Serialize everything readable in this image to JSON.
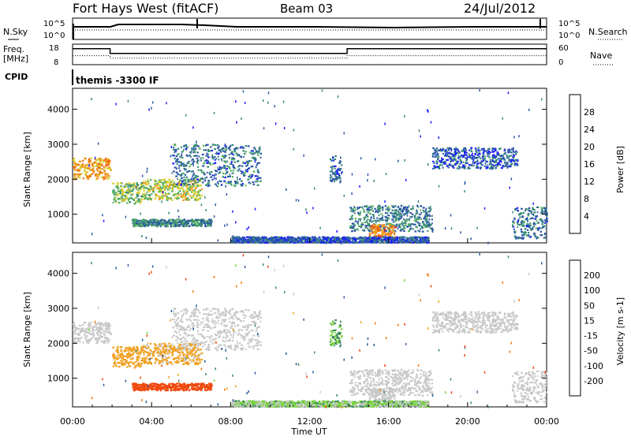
{
  "header": {
    "station": "Fort Hays West (fitACF)",
    "beam": "Beam 03",
    "date": "24/Jul/2012"
  },
  "top_panels": {
    "nsky_label": "N.Sky",
    "nsky_ticks": [
      "10^5",
      "10^0"
    ],
    "nsearch_label": "N.Search",
    "nsearch_ticks": [
      "10^5",
      "10^0"
    ],
    "freq_label_1": "Freq.",
    "freq_label_2": "[MHz]",
    "freq_ticks": [
      "18",
      "8"
    ],
    "nave_label": "Nave",
    "nave_ticks": [
      "60",
      "0"
    ],
    "cpid_label": "CPID",
    "cpid_text": "themis -3300 IF"
  },
  "chart_data": [
    {
      "type": "line",
      "name": "frequency",
      "x_unit": "hours UT",
      "xlim": [
        0,
        24
      ],
      "ylim": [
        8,
        18
      ],
      "x": [
        0,
        1.9,
        1.9,
        13.9,
        13.9,
        24
      ],
      "values": [
        16,
        16,
        13.5,
        13.5,
        16,
        16
      ]
    },
    {
      "type": "line",
      "name": "nave",
      "x_unit": "hours UT",
      "xlim": [
        0,
        24
      ],
      "ylim": [
        0,
        60
      ],
      "x": [
        0,
        1.9,
        1.9,
        13.9,
        13.9,
        24
      ],
      "values": [
        26,
        26,
        18,
        18,
        26,
        26
      ]
    },
    {
      "type": "heatmap",
      "name": "power",
      "ylabel": "Slant Range [km]",
      "xlim": [
        0,
        24
      ],
      "ylim": [
        180,
        4600
      ],
      "yticks": [
        1000,
        2000,
        3000,
        4000
      ],
      "colorbar": {
        "label": "Power [dB]",
        "ticks": [
          "4",
          "8",
          "12",
          "16",
          "20",
          "24",
          "28"
        ],
        "colors": [
          "#1d1dff",
          "#2b55a8",
          "#3a8a7a",
          "#55b060",
          "#d6cc2a",
          "#f29a1c",
          "#f06a10",
          "#ee1c1c"
        ]
      }
    },
    {
      "type": "heatmap",
      "name": "velocity",
      "ylabel": "Slant Range [km]",
      "xlabel": "Time UT",
      "xlim": [
        0,
        24
      ],
      "ylim": [
        180,
        4600
      ],
      "yticks": [
        1000,
        2000,
        3000,
        4000
      ],
      "xticks": [
        "00:00",
        "04:00",
        "08:00",
        "12:00",
        "16:00",
        "20:00",
        "00:00"
      ],
      "colorbar": {
        "label": "Velocity [m s-1]",
        "ticks": [
          "200",
          "100",
          "50",
          "15",
          "-15",
          "-50",
          "-100",
          "-200"
        ],
        "colors": [
          "#1d1dff",
          "#2c5a9c",
          "#3b8a5e",
          "#79d43c",
          "#c8c8c8",
          "#f0a020",
          "#f07a10",
          "#f04a10",
          "#ee1c1c"
        ]
      },
      "regions": [
        {
          "t0": 0.0,
          "t1": 1.9,
          "r0": 2000,
          "r1": 2600,
          "power": 22,
          "vel": 0
        },
        {
          "t0": 2.0,
          "t1": 3.5,
          "r0": 1300,
          "r1": 1900,
          "power": 14,
          "vel": -35
        },
        {
          "t0": 3.5,
          "t1": 6.5,
          "r0": 1400,
          "r1": 2000,
          "power": 17,
          "vel": -25
        },
        {
          "t0": 5.0,
          "t1": 9.5,
          "r0": 1800,
          "r1": 3000,
          "power": 8,
          "vel": 0
        },
        {
          "t0": 3.0,
          "t1": 7.0,
          "r0": 650,
          "r1": 850,
          "power": 10,
          "vel": -120
        },
        {
          "t0": 14.0,
          "t1": 18.2,
          "r0": 500,
          "r1": 1250,
          "power": 9,
          "vel": 0
        },
        {
          "t0": 15.0,
          "t1": 16.3,
          "r0": 250,
          "r1": 700,
          "power": 24,
          "vel": 0
        },
        {
          "t0": 13.0,
          "t1": 13.6,
          "r0": 1900,
          "r1": 2700,
          "power": 7,
          "vel": 30
        },
        {
          "t0": 18.2,
          "t1": 22.5,
          "r0": 2300,
          "r1": 2900,
          "power": 6,
          "vel": 0
        },
        {
          "t0": 22.2,
          "t1": 24.0,
          "r0": 300,
          "r1": 1200,
          "power": 8,
          "vel": 0
        },
        {
          "t0": 8.0,
          "t1": 18.0,
          "r0": 180,
          "r1": 350,
          "power": 6,
          "vel": 20
        }
      ]
    }
  ]
}
